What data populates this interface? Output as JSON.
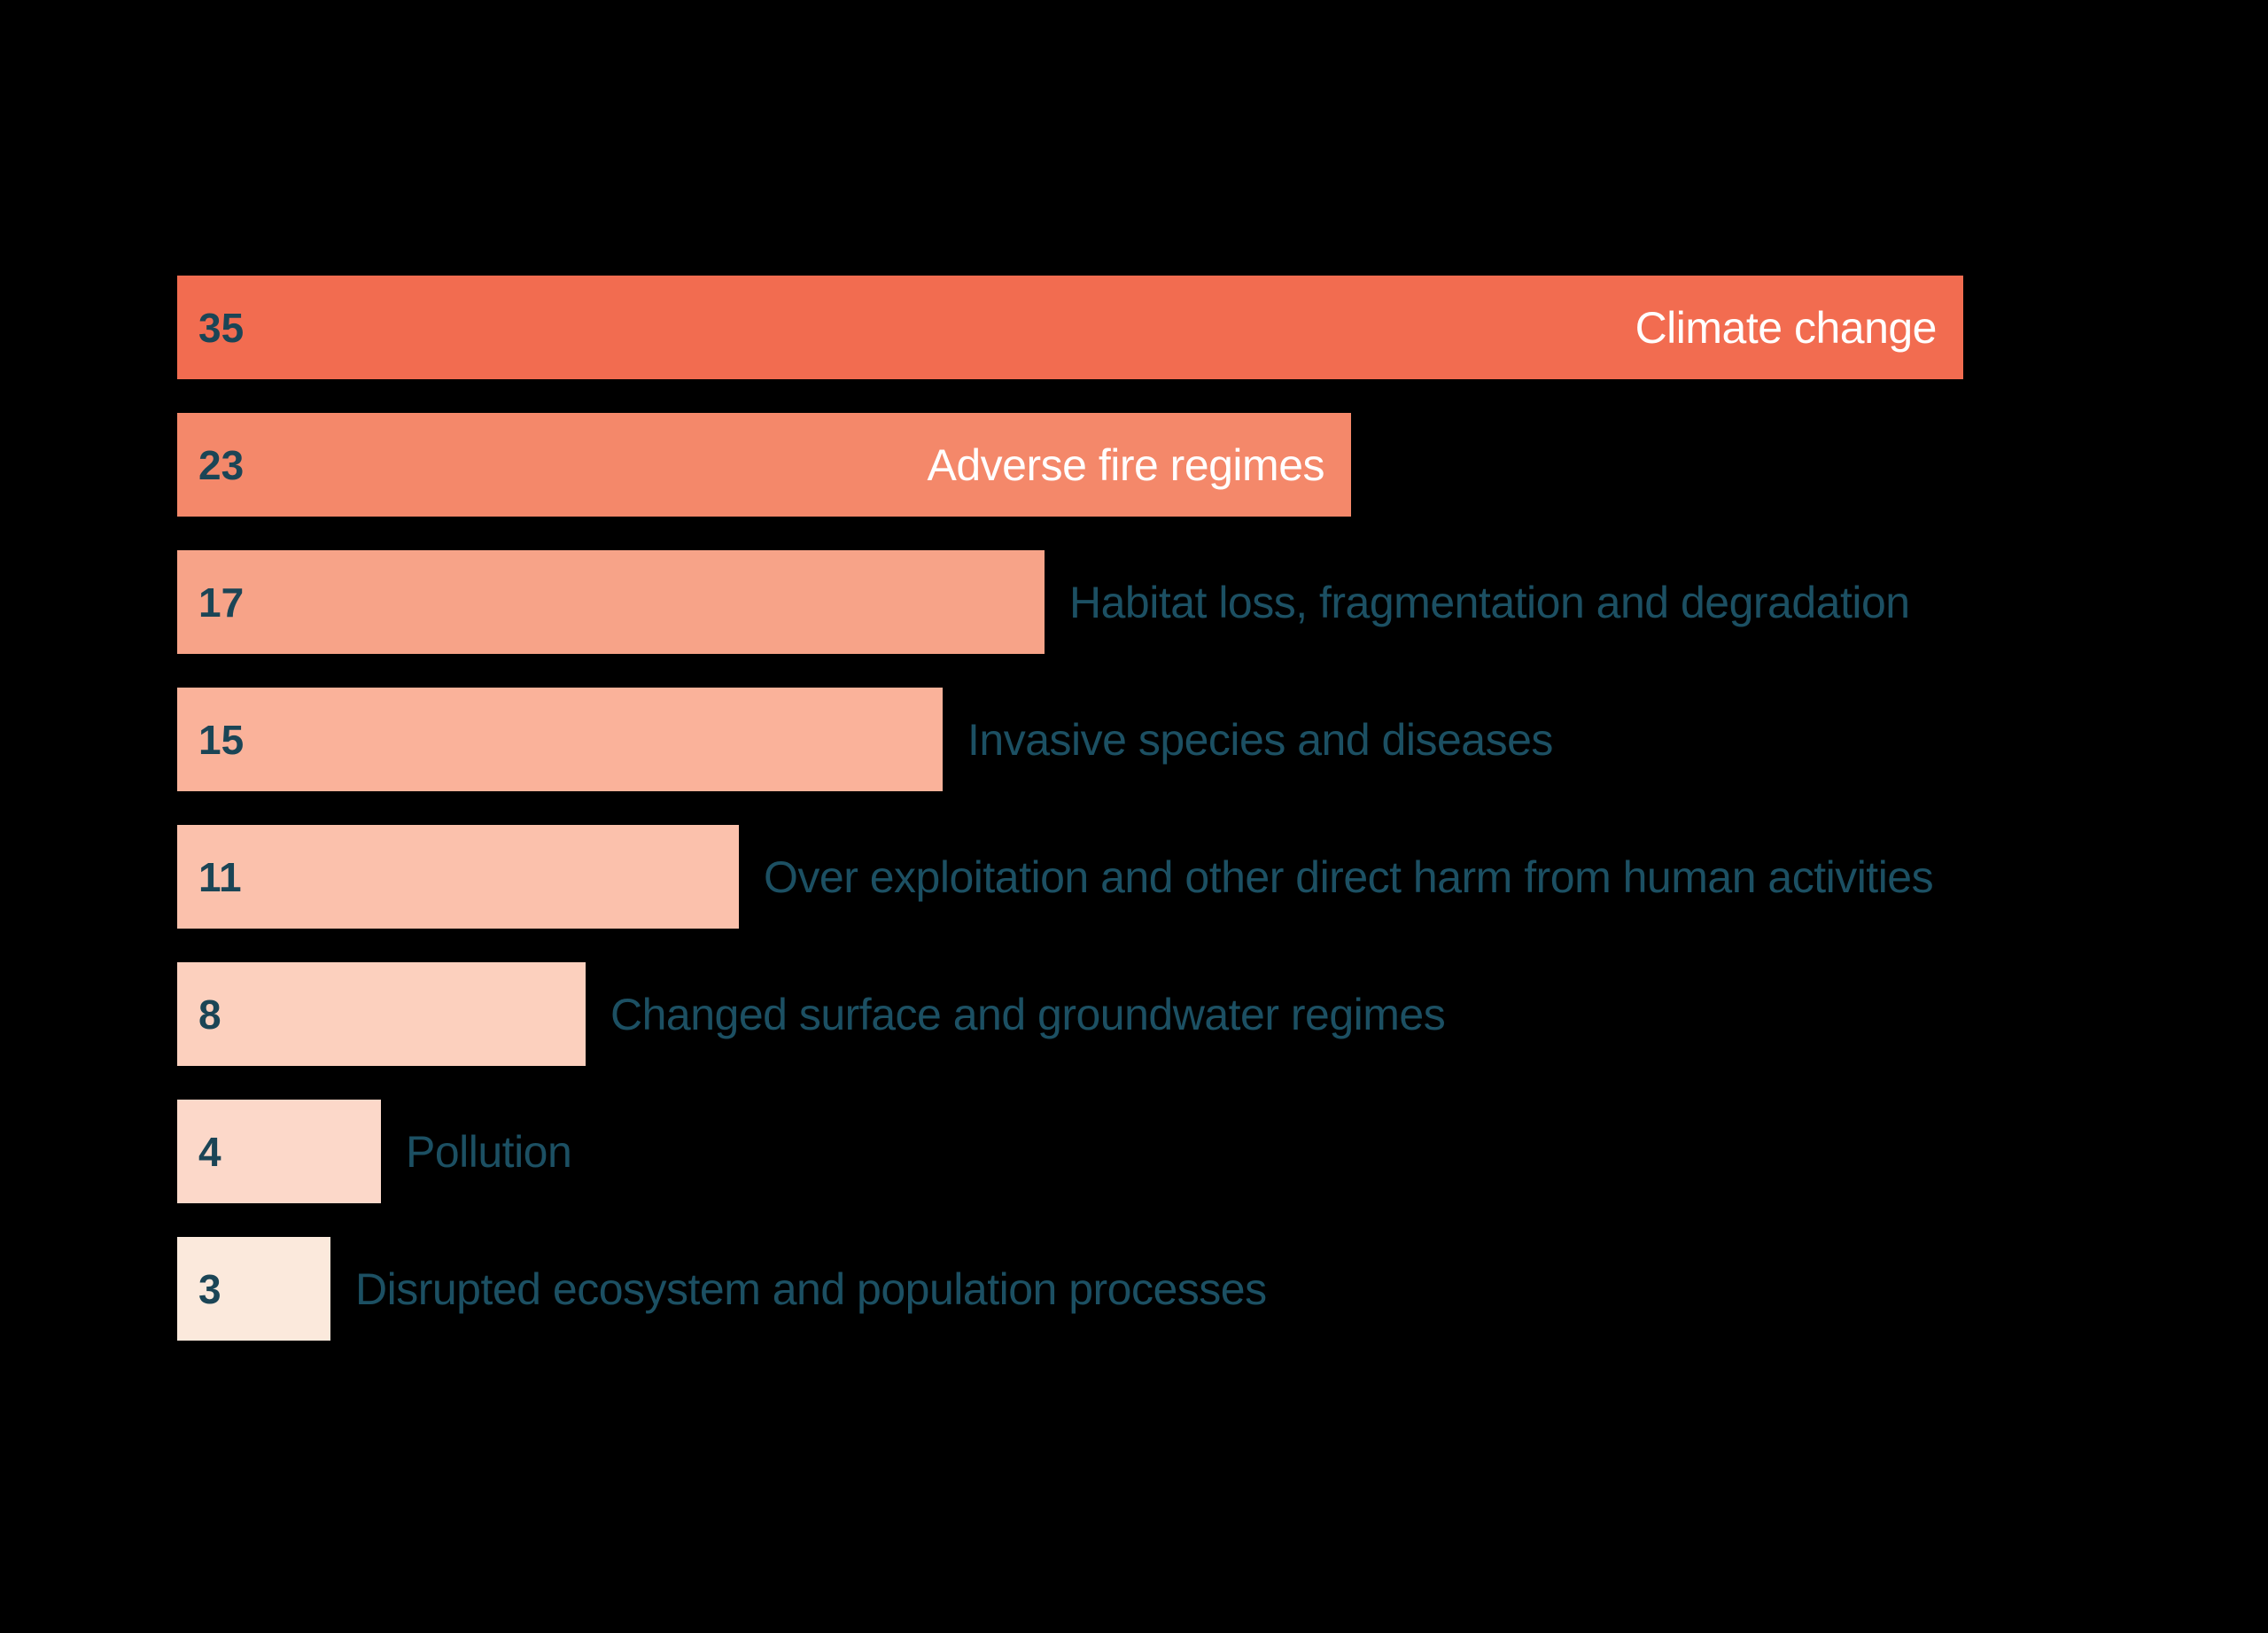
{
  "page": {
    "background_color": "#000000"
  },
  "chart_data": {
    "type": "bar",
    "orientation": "horizontal",
    "title": "",
    "xlabel": "",
    "ylabel": "",
    "xlim": [
      0,
      35
    ],
    "grid": false,
    "legend": false,
    "categories": [
      "Climate change",
      "Adverse fire regimes",
      "Habitat loss, fragmentation and degradation",
      "Invasive species and diseases",
      "Over exploitation and other direct harm from human activities",
      "Changed surface and groundwater regimes",
      "Pollution",
      "Disrupted ecosystem and population processes"
    ],
    "values": [
      35,
      23,
      17,
      15,
      11,
      8,
      4,
      3
    ],
    "value_label_color": "#1B4556",
    "inside_label_color": "#FFFFFF",
    "outside_label_color": "#1C5063",
    "bars": [
      {
        "label": "Climate change",
        "value": 35,
        "color": "#F26C50",
        "label_inside": true
      },
      {
        "label": "Adverse fire regimes",
        "value": 23,
        "color": "#F4886A",
        "label_inside": true
      },
      {
        "label": "Habitat loss, fragmentation and degradation",
        "value": 17,
        "color": "#F7A388",
        "label_inside": false
      },
      {
        "label": "Invasive species and diseases",
        "value": 15,
        "color": "#FAB29A",
        "label_inside": false
      },
      {
        "label": "Over exploitation and other direct harm from human activities",
        "value": 11,
        "color": "#FBC1AC",
        "label_inside": false
      },
      {
        "label": "Changed surface and groundwater regimes",
        "value": 8,
        "color": "#FCD0BE",
        "label_inside": false
      },
      {
        "label": "Pollution",
        "value": 4,
        "color": "#FCD8C9",
        "label_inside": false
      },
      {
        "label": "Disrupted ecosystem and population processes",
        "value": 3,
        "color": "#FBE9DC",
        "label_inside": false
      }
    ]
  }
}
